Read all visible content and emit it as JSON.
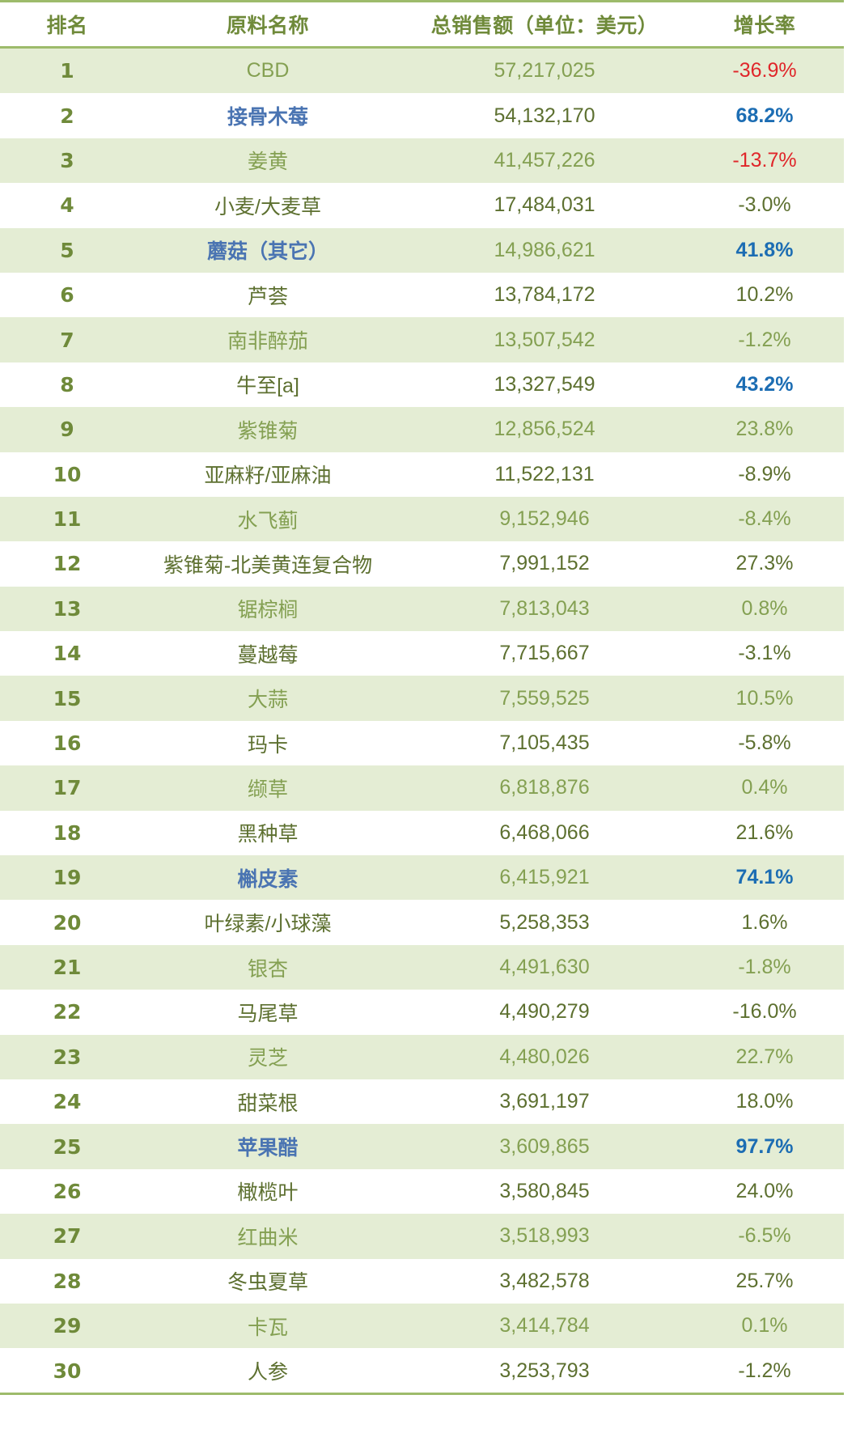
{
  "table": {
    "headers": {
      "rank": "排名",
      "name": "原料名称",
      "amount": "总销售额（单位：美元）",
      "growth": "增长率"
    },
    "colors": {
      "header_text": "#6f8a3a",
      "rule": "#9dbb6b",
      "band": "#e4edd4",
      "highlight_name": "#4a74b2",
      "highlight_growth": "#1c6db3",
      "negative_highlight": "#e0262a"
    },
    "rows": [
      {
        "rank": "1",
        "name": "CBD",
        "amount": "57,217,025",
        "growth": "-36.9%",
        "name_style": "",
        "growth_style": "red"
      },
      {
        "rank": "2",
        "name": "接骨木莓",
        "amount": "54,132,170",
        "growth": "68.2%",
        "name_style": "blue",
        "growth_style": "blue"
      },
      {
        "rank": "3",
        "name": "姜黄",
        "amount": "41,457,226",
        "growth": "-13.7%",
        "name_style": "",
        "growth_style": "red"
      },
      {
        "rank": "4",
        "name": "小麦/大麦草",
        "amount": "17,484,031",
        "growth": "-3.0%",
        "name_style": "",
        "growth_style": ""
      },
      {
        "rank": "5",
        "name": "蘑菇（其它）",
        "amount": "14,986,621",
        "growth": "41.8%",
        "name_style": "blue",
        "growth_style": "blue"
      },
      {
        "rank": "6",
        "name": "芦荟",
        "amount": "13,784,172",
        "growth": "10.2%",
        "name_style": "",
        "growth_style": ""
      },
      {
        "rank": "7",
        "name": "南非醉茄",
        "amount": "13,507,542",
        "growth": "-1.2%",
        "name_style": "",
        "growth_style": ""
      },
      {
        "rank": "8",
        "name": "牛至[a]",
        "amount": "13,327,549",
        "growth": "43.2%",
        "name_style": "",
        "growth_style": "blue"
      },
      {
        "rank": "9",
        "name": "紫锥菊",
        "amount": "12,856,524",
        "growth": "23.8%",
        "name_style": "",
        "growth_style": ""
      },
      {
        "rank": "10",
        "name": "亚麻籽/亚麻油",
        "amount": "11,522,131",
        "growth": "-8.9%",
        "name_style": "",
        "growth_style": ""
      },
      {
        "rank": "11",
        "name": "水飞蓟",
        "amount": "9,152,946",
        "growth": "-8.4%",
        "name_style": "",
        "growth_style": ""
      },
      {
        "rank": "12",
        "name": "紫锥菊-北美黄连复合物",
        "amount": "7,991,152",
        "growth": "27.3%",
        "name_style": "",
        "growth_style": ""
      },
      {
        "rank": "13",
        "name": "锯棕榈",
        "amount": "7,813,043",
        "growth": "0.8%",
        "name_style": "",
        "growth_style": ""
      },
      {
        "rank": "14",
        "name": "蔓越莓",
        "amount": "7,715,667",
        "growth": "-3.1%",
        "name_style": "",
        "growth_style": ""
      },
      {
        "rank": "15",
        "name": "大蒜",
        "amount": "7,559,525",
        "growth": "10.5%",
        "name_style": "",
        "growth_style": ""
      },
      {
        "rank": "16",
        "name": "玛卡",
        "amount": "7,105,435",
        "growth": "-5.8%",
        "name_style": "",
        "growth_style": ""
      },
      {
        "rank": "17",
        "name": "缬草",
        "amount": "6,818,876",
        "growth": "0.4%",
        "name_style": "",
        "growth_style": ""
      },
      {
        "rank": "18",
        "name": "黑种草",
        "amount": "6,468,066",
        "growth": "21.6%",
        "name_style": "",
        "growth_style": ""
      },
      {
        "rank": "19",
        "name": "槲皮素",
        "amount": "6,415,921",
        "growth": "74.1%",
        "name_style": "blue",
        "growth_style": "blue"
      },
      {
        "rank": "20",
        "name": "叶绿素/小球藻",
        "amount": "5,258,353",
        "growth": "1.6%",
        "name_style": "",
        "growth_style": ""
      },
      {
        "rank": "21",
        "name": "银杏",
        "amount": "4,491,630",
        "growth": "-1.8%",
        "name_style": "",
        "growth_style": ""
      },
      {
        "rank": "22",
        "name": "马尾草",
        "amount": "4,490,279",
        "growth": "-16.0%",
        "name_style": "",
        "growth_style": ""
      },
      {
        "rank": "23",
        "name": "灵芝",
        "amount": "4,480,026",
        "growth": "22.7%",
        "name_style": "",
        "growth_style": ""
      },
      {
        "rank": "24",
        "name": "甜菜根",
        "amount": "3,691,197",
        "growth": "18.0%",
        "name_style": "",
        "growth_style": ""
      },
      {
        "rank": "25",
        "name": "苹果醋",
        "amount": "3,609,865",
        "growth": "97.7%",
        "name_style": "blue",
        "growth_style": "blue"
      },
      {
        "rank": "26",
        "name": "橄榄叶",
        "amount": "3,580,845",
        "growth": "24.0%",
        "name_style": "",
        "growth_style": ""
      },
      {
        "rank": "27",
        "name": "红曲米",
        "amount": "3,518,993",
        "growth": "-6.5%",
        "name_style": "",
        "growth_style": ""
      },
      {
        "rank": "28",
        "name": "冬虫夏草",
        "amount": "3,482,578",
        "growth": "25.7%",
        "name_style": "",
        "growth_style": ""
      },
      {
        "rank": "29",
        "name": "卡瓦",
        "amount": "3,414,784",
        "growth": "0.1%",
        "name_style": "",
        "growth_style": ""
      },
      {
        "rank": "30",
        "name": "人参",
        "amount": "3,253,793",
        "growth": "-1.2%",
        "name_style": "",
        "growth_style": ""
      }
    ]
  }
}
